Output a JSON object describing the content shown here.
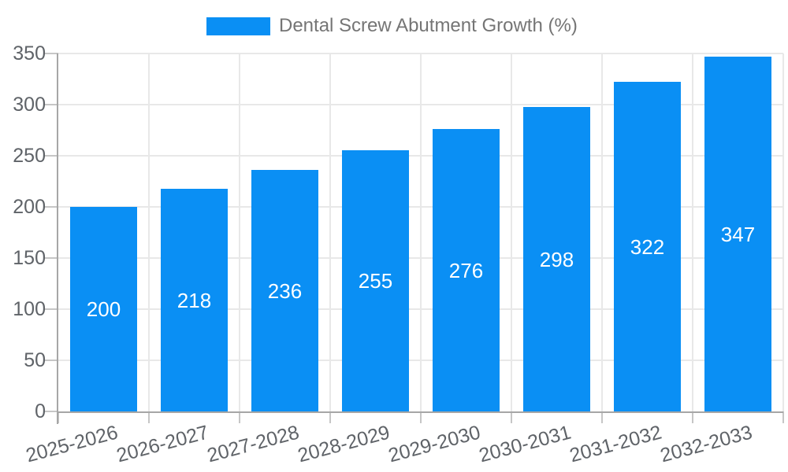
{
  "legend": {
    "series_label": "Dental Screw Abutment Growth (%)"
  },
  "chart_data": {
    "type": "bar",
    "title": "Dental Screw Abutment Growth (%)",
    "categories": [
      "2025-2026",
      "2026-2027",
      "2027-2028",
      "2028-2029",
      "2029-2030",
      "2030-2031",
      "2031-2032",
      "2032-2033"
    ],
    "values": [
      200,
      218,
      236,
      255,
      276,
      298,
      322,
      347
    ],
    "xlabel": "",
    "ylabel": "",
    "ylim": [
      0,
      350
    ],
    "yticks": [
      0,
      50,
      100,
      150,
      200,
      250,
      300,
      350
    ],
    "grid": true,
    "legend_position": "top-center",
    "value_labels_position": "inside-center",
    "x_label_rotation_deg": -15
  },
  "colors": {
    "background": "#ffffff",
    "bar": "#0a8ff4",
    "grid": "#e8e8e8",
    "axis": "#a6a6a6",
    "tick": "#c6c6c6",
    "axis_label": "#5f6368",
    "legend_text": "#757575",
    "value_label": "#ffffff"
  }
}
